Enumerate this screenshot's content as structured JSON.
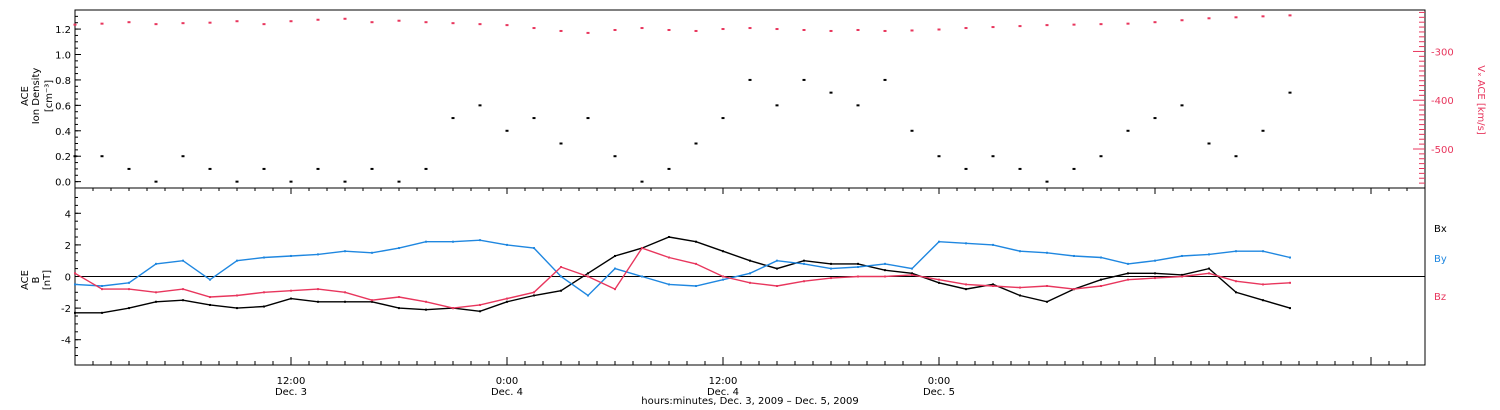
{
  "chart_data": [
    {
      "type": "scatter",
      "panel": "top",
      "ylabel_left_lines": [
        "ACE",
        "Ion Density"
      ],
      "ylabel_left_unit": "[cm⁻³]",
      "ylabel_right": "Vₓ ACE [km/s]",
      "ylim_left": [
        -0.05,
        1.35
      ],
      "yticks_left": [
        "0.0",
        "0.2",
        "0.4",
        "0.6",
        "0.8",
        "1.0",
        "1.2"
      ],
      "ylim_right": [
        -580,
        -215
      ],
      "yticks_right": [
        "-300",
        "-400",
        "-500"
      ],
      "series": [
        {
          "axis": "left",
          "color": "#000000",
          "x": [
            0,
            1.5,
            3,
            4.5,
            6,
            7.5,
            9,
            10.5,
            12,
            13.5,
            15,
            16.5,
            18,
            19.5,
            21,
            22.5,
            24,
            25.5,
            27,
            28.5,
            30,
            31.5,
            33,
            34.5,
            36,
            37.5,
            39,
            40.5,
            42,
            43.5,
            45,
            46.5,
            48,
            49.5,
            51,
            52.5,
            54,
            55.5,
            57,
            58.5,
            60,
            61.5,
            63,
            64.5,
            66,
            67.5
          ],
          "y": [
            0.2,
            0.2,
            0.1,
            0.0,
            0.2,
            0.1,
            0.0,
            0.1,
            0.0,
            0.1,
            0.0,
            0.1,
            0.0,
            0.1,
            0.5,
            0.6,
            0.4,
            0.5,
            0.3,
            0.5,
            0.2,
            0.0,
            0.1,
            0.3,
            0.5,
            0.8,
            0.6,
            0.8,
            0.7,
            0.6,
            0.8,
            0.4,
            0.2,
            0.1,
            0.2,
            0.1,
            0.0,
            0.1,
            0.2,
            0.4,
            0.5,
            0.6,
            0.3,
            0.2,
            0.4,
            0.7
          ]
        },
        {
          "axis": "right",
          "color": "#e8365d",
          "x": [
            0,
            1.5,
            3,
            4.5,
            6,
            7.5,
            9,
            10.5,
            12,
            13.5,
            15,
            16.5,
            18,
            19.5,
            21,
            22.5,
            24,
            25.5,
            27,
            28.5,
            30,
            31.5,
            33,
            34.5,
            36,
            37.5,
            39,
            40.5,
            42,
            43.5,
            45,
            46.5,
            48,
            49.5,
            51,
            52.5,
            54,
            55.5,
            57,
            58.5,
            60,
            61.5,
            63,
            64.5,
            66,
            67.5
          ],
          "y": [
            -245,
            -243,
            -240,
            -244,
            -242,
            -241,
            -238,
            -244,
            -238,
            -235,
            -233,
            -240,
            -237,
            -240,
            -242,
            -244,
            -246,
            -252,
            -258,
            -262,
            -256,
            -252,
            -256,
            -258,
            -254,
            -252,
            -254,
            -256,
            -258,
            -256,
            -258,
            -257,
            -255,
            -252,
            -250,
            -248,
            -246,
            -245,
            -244,
            -243,
            -240,
            -236,
            -232,
            -230,
            -228,
            -226
          ]
        }
      ]
    },
    {
      "type": "line",
      "panel": "bottom",
      "ylabel_lines": [
        "ACE",
        "B"
      ],
      "ylabel_unit": "[nT]",
      "ylim": [
        -5.6,
        5.6
      ],
      "yticks": [
        "4",
        "2",
        "0",
        "-2",
        "-4"
      ],
      "grid": false,
      "legend_placement": "right",
      "series": [
        {
          "name": "Bx",
          "color": "#000000",
          "x": [
            0,
            1.5,
            3,
            4.5,
            6,
            7.5,
            9,
            10.5,
            12,
            13.5,
            15,
            16.5,
            18,
            19.5,
            21,
            22.5,
            24,
            25.5,
            27,
            28.5,
            30,
            31.5,
            33,
            34.5,
            36,
            37.5,
            39,
            40.5,
            42,
            43.5,
            45,
            46.5,
            48,
            49.5,
            51,
            52.5,
            54,
            55.5,
            57,
            58.5,
            60,
            61.5,
            63,
            64.5,
            66,
            67.5
          ],
          "y": [
            -2.3,
            -2.3,
            -2.0,
            -1.6,
            -1.5,
            -1.8,
            -2.0,
            -1.9,
            -1.4,
            -1.6,
            -1.6,
            -1.6,
            -2.0,
            -2.1,
            -2.0,
            -2.2,
            -1.6,
            -1.2,
            -0.9,
            0.2,
            1.3,
            1.8,
            2.5,
            2.2,
            1.6,
            1.0,
            0.5,
            1.0,
            0.8,
            0.8,
            0.4,
            0.2,
            -0.4,
            -0.8,
            -0.5,
            -1.2,
            -1.6,
            -0.8,
            -0.2,
            0.2,
            0.2,
            0.1,
            0.5,
            -1.0,
            -1.5,
            -2.0
          ]
        },
        {
          "name": "By",
          "color": "#1f87e0",
          "x": [
            0,
            1.5,
            3,
            4.5,
            6,
            7.5,
            9,
            10.5,
            12,
            13.5,
            15,
            16.5,
            18,
            19.5,
            21,
            22.5,
            24,
            25.5,
            27,
            28.5,
            30,
            31.5,
            33,
            34.5,
            36,
            37.5,
            39,
            40.5,
            42,
            43.5,
            45,
            46.5,
            48,
            49.5,
            51,
            52.5,
            54,
            55.5,
            57,
            58.5,
            60,
            61.5,
            63,
            64.5,
            66,
            67.5
          ],
          "y": [
            -0.5,
            -0.6,
            -0.4,
            0.8,
            1.0,
            -0.2,
            1.0,
            1.2,
            1.3,
            1.4,
            1.6,
            1.5,
            1.8,
            2.2,
            2.2,
            2.3,
            2.0,
            1.8,
            0.0,
            -1.2,
            0.5,
            0.0,
            -0.5,
            -0.6,
            -0.2,
            0.2,
            1.0,
            0.8,
            0.5,
            0.6,
            0.8,
            0.5,
            2.2,
            2.1,
            2.0,
            1.6,
            1.5,
            1.3,
            1.2,
            0.8,
            1.0,
            1.3,
            1.4,
            1.6,
            1.6,
            1.2
          ]
        },
        {
          "name": "Bz",
          "color": "#e8365d",
          "x": [
            0,
            1.5,
            3,
            4.5,
            6,
            7.5,
            9,
            10.5,
            12,
            13.5,
            15,
            16.5,
            18,
            19.5,
            21,
            22.5,
            24,
            25.5,
            27,
            28.5,
            30,
            31.5,
            33,
            34.5,
            36,
            37.5,
            39,
            40.5,
            42,
            43.5,
            45,
            46.5,
            48,
            49.5,
            51,
            52.5,
            54,
            55.5,
            57,
            58.5,
            60,
            61.5,
            63,
            64.5,
            66,
            67.5
          ],
          "y": [
            0.2,
            -0.8,
            -0.8,
            -1.0,
            -0.8,
            -1.3,
            -1.2,
            -1.0,
            -0.9,
            -0.8,
            -1.0,
            -1.5,
            -1.3,
            -1.6,
            -2.0,
            -1.8,
            -1.4,
            -1.0,
            0.6,
            0.0,
            -0.8,
            1.8,
            1.2,
            0.8,
            0.0,
            -0.4,
            -0.6,
            -0.3,
            -0.1,
            0.0,
            0.0,
            0.1,
            -0.2,
            -0.5,
            -0.6,
            -0.7,
            -0.6,
            -0.8,
            -0.6,
            -0.2,
            -0.1,
            0.0,
            0.2,
            -0.3,
            -0.5,
            -0.4
          ]
        }
      ]
    }
  ],
  "x_axis": {
    "xlim": [
      0,
      75
    ],
    "ticks": [
      {
        "x": 12,
        "time": "12:00",
        "day": "Dec. 3"
      },
      {
        "x": 24,
        "time": "0:00",
        "day": "Dec. 4"
      },
      {
        "x": 36,
        "time": "12:00",
        "day": "Dec. 4"
      },
      {
        "x": 48,
        "time": "0:00",
        "day": "Dec. 5"
      }
    ],
    "xlabel": "hours:minutes, Dec.  3, 2009 – Dec.  5, 2009"
  },
  "colors": {
    "black": "#000000",
    "pink": "#e8365d",
    "blue": "#1f87e0"
  }
}
